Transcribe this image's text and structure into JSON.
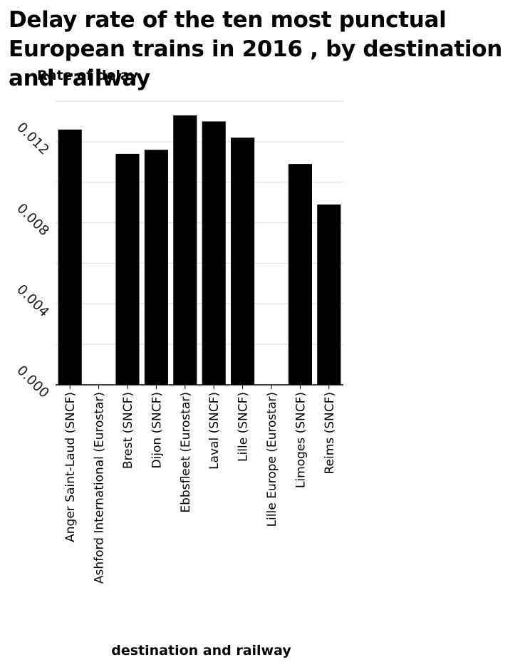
{
  "chart_data": {
    "type": "bar",
    "title": "Delay rate of the ten most punctual European trains in 2016 , by destination and railway",
    "xlabel": "destination and railway",
    "ylabel": "Rate of delay",
    "categories": [
      "Anger Saint-Laud (SNCF)",
      "Ashford International (Eurostar)",
      "Brest (SNCF)",
      "Dijon (SNCF)",
      "Ebbsfleet (Eurostar)",
      "Laval (SNCF)",
      "Lille (SNCF)",
      "Lille Europe (Eurostar)",
      "Limoges (SNCF)",
      "Reims (SNCF)"
    ],
    "values": [
      0.0126,
      0,
      0.0114,
      0.0116,
      0.0133,
      0.013,
      0.0122,
      0,
      0.0109,
      0.0089
    ],
    "ylim": [
      0,
      0.014
    ],
    "yticks": [
      "0.000",
      "0.004",
      "0.008",
      "0.012"
    ],
    "ytick_values": [
      0,
      0.004,
      0.008,
      0.012
    ],
    "grid": true,
    "bar_color": "#000000",
    "grid_color": "#dddddd"
  }
}
